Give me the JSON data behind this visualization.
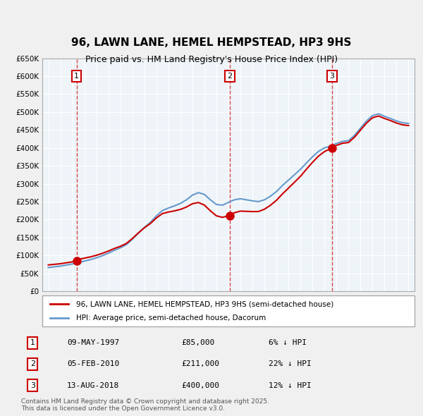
{
  "title": "96, LAWN LANE, HEMEL HEMPSTEAD, HP3 9HS",
  "subtitle": "Price paid vs. HM Land Registry's House Price Index (HPI)",
  "legend_line1": "96, LAWN LANE, HEMEL HEMPSTEAD, HP3 9HS (semi-detached house)",
  "legend_line2": "HPI: Average price, semi-detached house, Dacorum",
  "sale1_date": "09-MAY-1997",
  "sale1_price": 85000,
  "sale1_pct": "6% ↓ HPI",
  "sale2_date": "05-FEB-2010",
  "sale2_price": 211000,
  "sale2_pct": "22% ↓ HPI",
  "sale3_date": "13-AUG-2018",
  "sale3_price": 400000,
  "sale3_pct": "12% ↓ HPI",
  "footer": "Contains HM Land Registry data © Crown copyright and database right 2025.\nThis data is licensed under the Open Government Licence v3.0.",
  "line_color_red": "#cc0000",
  "line_color_blue": "#6699cc",
  "bg_color": "#dde8f0",
  "plot_bg": "#eef4f8",
  "grid_color": "#ffffff",
  "ylim": [
    0,
    650000
  ],
  "yticks": [
    0,
    50000,
    100000,
    150000,
    200000,
    250000,
    300000,
    350000,
    400000,
    450000,
    500000,
    550000,
    600000,
    650000
  ],
  "xlim_start": 1994.5,
  "xlim_end": 2025.5
}
